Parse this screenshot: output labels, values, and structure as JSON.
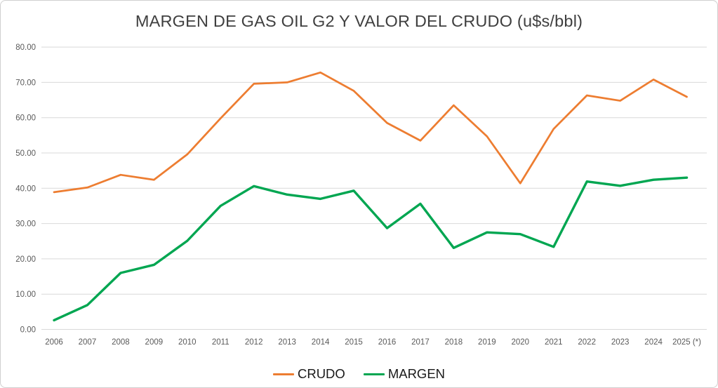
{
  "title": "MARGEN DE GAS OIL G2 Y VALOR DEL CRUDO (u$s/bbl)",
  "chart_data": {
    "type": "line",
    "title": "MARGEN DE GAS OIL G2 Y VALOR DEL CRUDO (u$s/bbl)",
    "xlabel": "",
    "ylabel": "",
    "categories": [
      "2006",
      "2007",
      "2008",
      "2009",
      "2010",
      "2011",
      "2012",
      "2013",
      "2014",
      "2015",
      "2016",
      "2017",
      "2018",
      "2019",
      "2020",
      "2021",
      "2022",
      "2023",
      "2024",
      "2025 (*)"
    ],
    "series": [
      {
        "name": "CRUDO",
        "color": "#ED7D31",
        "width": 2.75,
        "values": [
          38.9,
          40.2,
          43.8,
          42.4,
          49.6,
          59.8,
          69.6,
          70.0,
          72.8,
          67.6,
          58.5,
          53.5,
          63.5,
          54.7,
          41.4,
          56.8,
          66.3,
          64.8,
          70.8,
          65.9
        ]
      },
      {
        "name": "MARGEN",
        "color": "#00A651",
        "width": 3.4,
        "values": [
          2.6,
          6.9,
          16.0,
          18.3,
          25.1,
          35.0,
          40.6,
          38.2,
          37.0,
          39.3,
          28.7,
          35.6,
          23.1,
          27.5,
          27.0,
          23.4,
          41.9,
          40.7,
          42.4,
          43.0
        ]
      }
    ],
    "ylim": [
      0,
      80
    ],
    "ytick_step": 10,
    "ytick_labels": [
      "0.00",
      "10.00",
      "20.00",
      "30.00",
      "40.00",
      "50.00",
      "60.00",
      "70.00",
      "80.00"
    ],
    "grid": true,
    "legend_position": "bottom"
  },
  "colors": {
    "gridline": "#D9D9D9",
    "tick_text": "#595959",
    "title_text": "#3f3f3f",
    "legend_text": "#1a1a1a",
    "background": "#FFFFFF",
    "border": "#CFCFCF"
  }
}
